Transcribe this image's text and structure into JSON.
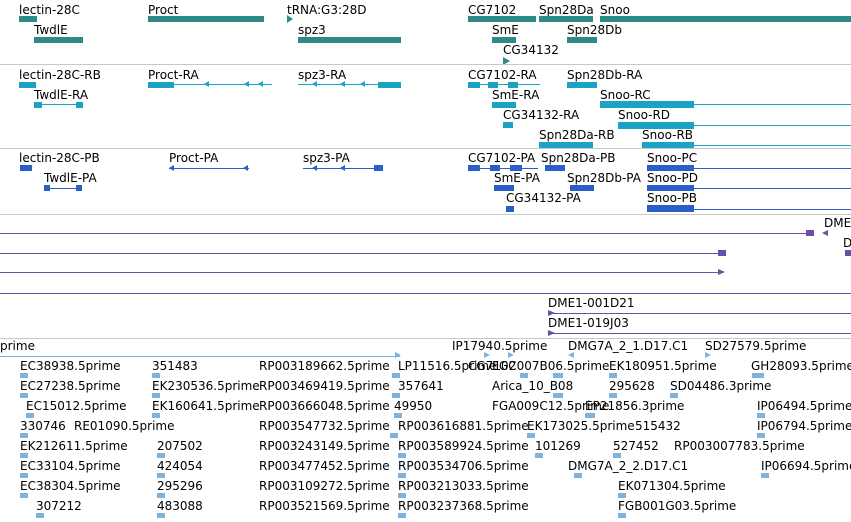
{
  "colors": {
    "gene": "#2d8a86",
    "transcript": "#1aa3c4",
    "cds": "#2a5fc9",
    "clone": "#6b4fa8",
    "est": "#7fb3dc",
    "separator": "#c8c8c8"
  },
  "gene_track": {
    "labels": [
      "lectin-28C",
      "Proct",
      "tRNA:G3:28D",
      "CG7102",
      "Spn28Da",
      "Snoo",
      "TwdlE",
      "spz3",
      "SmE",
      "Spn28Db",
      "CG34132"
    ]
  },
  "transcript_track": {
    "labels": [
      "lectin-28C-RB",
      "Proct-RA",
      "spz3-RA",
      "CG7102-RA",
      "Spn28Db-RA",
      "TwdlE-RA",
      "SmE-RA",
      "Snoo-RC",
      "CG34132-RA",
      "Snoo-RD",
      "Spn28Da-RB",
      "Snoo-RB"
    ]
  },
  "cds_track": {
    "labels": [
      "lectin-28C-PB",
      "Proct-PA",
      "spz3-PA",
      "CG7102-PA",
      "Spn28Da-PB",
      "Snoo-PC",
      "TwdlE-PA",
      "SmE-PA",
      "Spn28Db-PA",
      "Snoo-PD",
      "CG34132-PA",
      "Snoo-PB"
    ]
  },
  "clone_track": {
    "labels": [
      "DME",
      "D",
      "DME1-001D21",
      "DME1-019J03"
    ]
  },
  "est_track": {
    "labels": [
      "prime",
      "IP17940.5prime",
      "DMG7A_2_1.D17.C1",
      "SD27579.5prime",
      "EC38938.5prime",
      "351483",
      "RP003189662.5prime",
      "LP11516.5prime",
      "CG7102",
      "FGC007B06.5prime",
      "EK180951.5prime",
      "GH28093.5prime",
      "EC27238.5prime",
      "EK230536.5prime",
      "RP003469419.5prime",
      "357641",
      "Arica_10_B08",
      "295628",
      "SD04486.3prime",
      "EC15012.5prime",
      "EK160641.5prime",
      "RP003666048.5prime",
      "49950",
      "FGA009C12.5prime",
      "EP21856.3prime",
      "IP06494.5prime",
      "330746",
      "RE01090.5prime",
      "RP003547732.5prime",
      "RP003616881.5prime",
      "EK173025.5prime",
      "515432",
      "IP06794.5prime",
      "EK212611.5prime",
      "207502",
      "RP003243149.5prime",
      "RP003589924.5prime",
      "101269",
      "527452",
      "RP003007783.5prime",
      "EC33104.5prime",
      "424054",
      "RP003477452.5prime",
      "RP003534706.5prime",
      "DMG7A_2_2.D17.C1",
      "IP06694.5prime",
      "EC38304.5prime",
      "295296",
      "RP003109272.5prime",
      "RP003213033.5prime",
      "EK071304.5prime",
      "307212",
      "483088",
      "RP003521569.5prime",
      "RP003237368.5prime",
      "FGB001G03.5prime"
    ]
  }
}
